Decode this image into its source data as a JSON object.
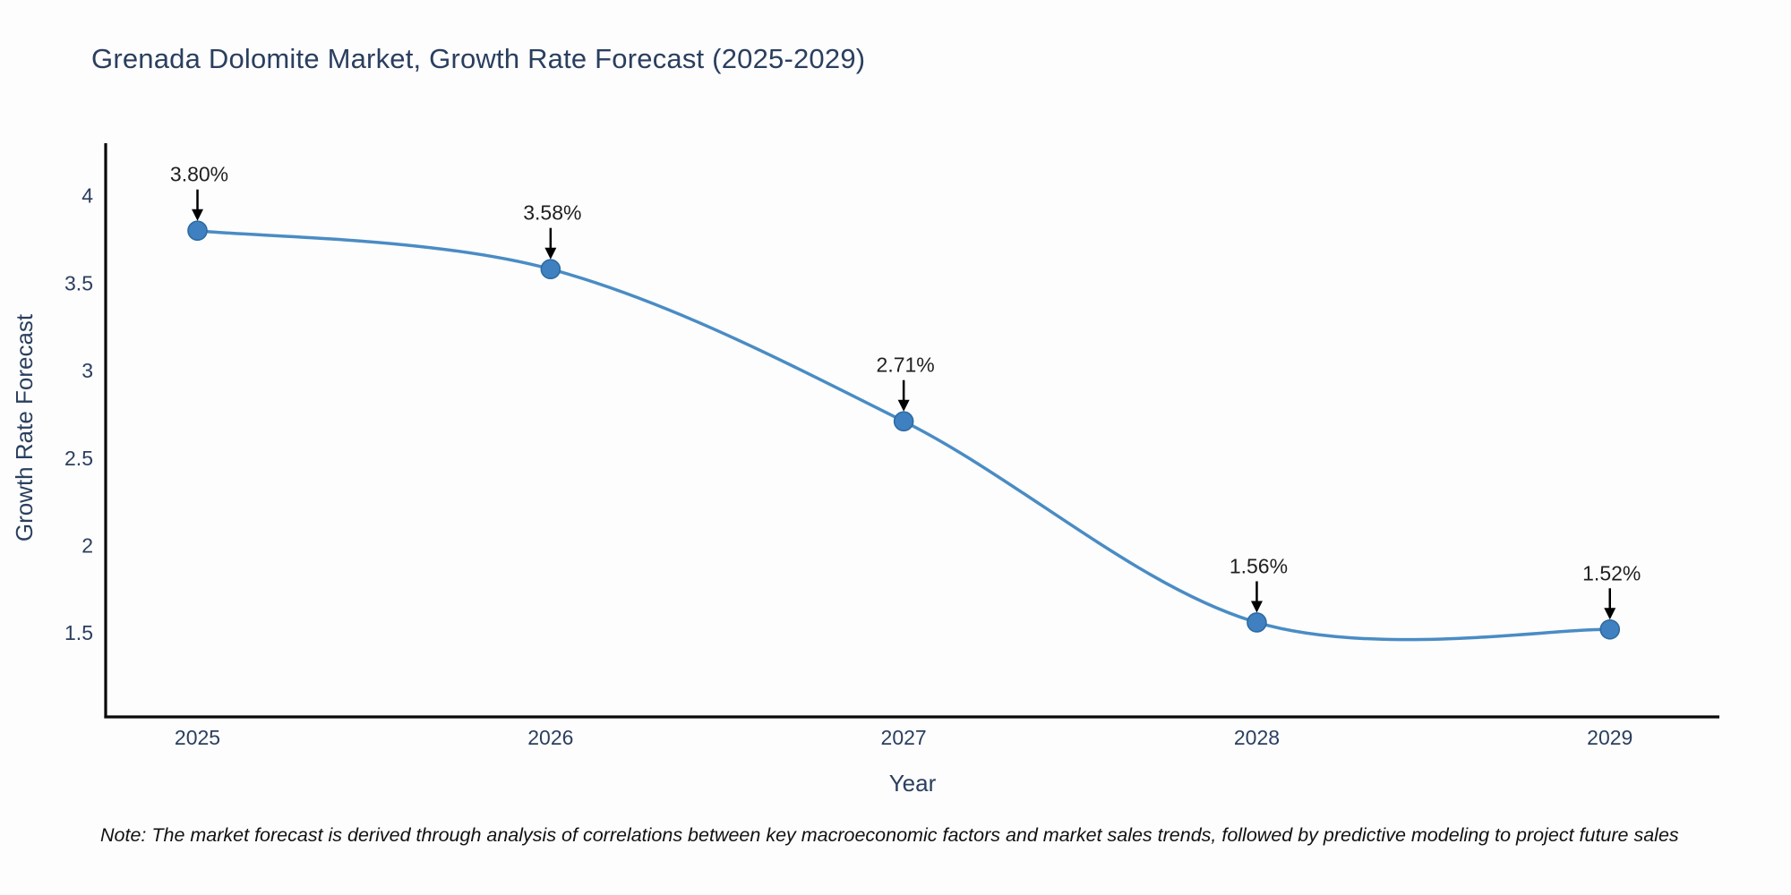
{
  "title": "Grenada Dolomite Market, Growth Rate Forecast (2025-2029)",
  "note": "Note: The market forecast is derived through analysis of correlations between key macroeconomic factors and market sales trends, followed by predictive modeling to project future sales",
  "chart_data": {
    "type": "line",
    "title": "Grenada Dolomite Market, Growth Rate Forecast (2025-2029)",
    "xlabel": "Year",
    "ylabel": "Growth Rate Forecast",
    "x": [
      2025,
      2026,
      2027,
      2028,
      2029
    ],
    "values": [
      3.8,
      3.58,
      2.71,
      1.56,
      1.52
    ],
    "point_labels": [
      "3.80%",
      "3.58%",
      "2.71%",
      "1.56%",
      "1.52%"
    ],
    "x_tick_labels": [
      "2025",
      "2026",
      "2027",
      "2028",
      "2029"
    ],
    "y_tick_labels": [
      "1.5",
      "2",
      "2.5",
      "3",
      "3.5",
      "4"
    ],
    "xlim": [
      2024.74,
      2029.31
    ],
    "ylim": [
      1.02,
      4.3
    ],
    "line_shape": "spline",
    "grid": false,
    "legend": "none",
    "colors": {
      "line": "#4a8cc4",
      "marker_fill": "#3f81c0",
      "marker_edge": "#2d6aa3",
      "axis_line": "#0a0a0a",
      "chart_text": "#2a3f5f",
      "annotation_text": "#1f1f1f",
      "arrow": "#000000",
      "background": "#fdfdfd"
    }
  }
}
